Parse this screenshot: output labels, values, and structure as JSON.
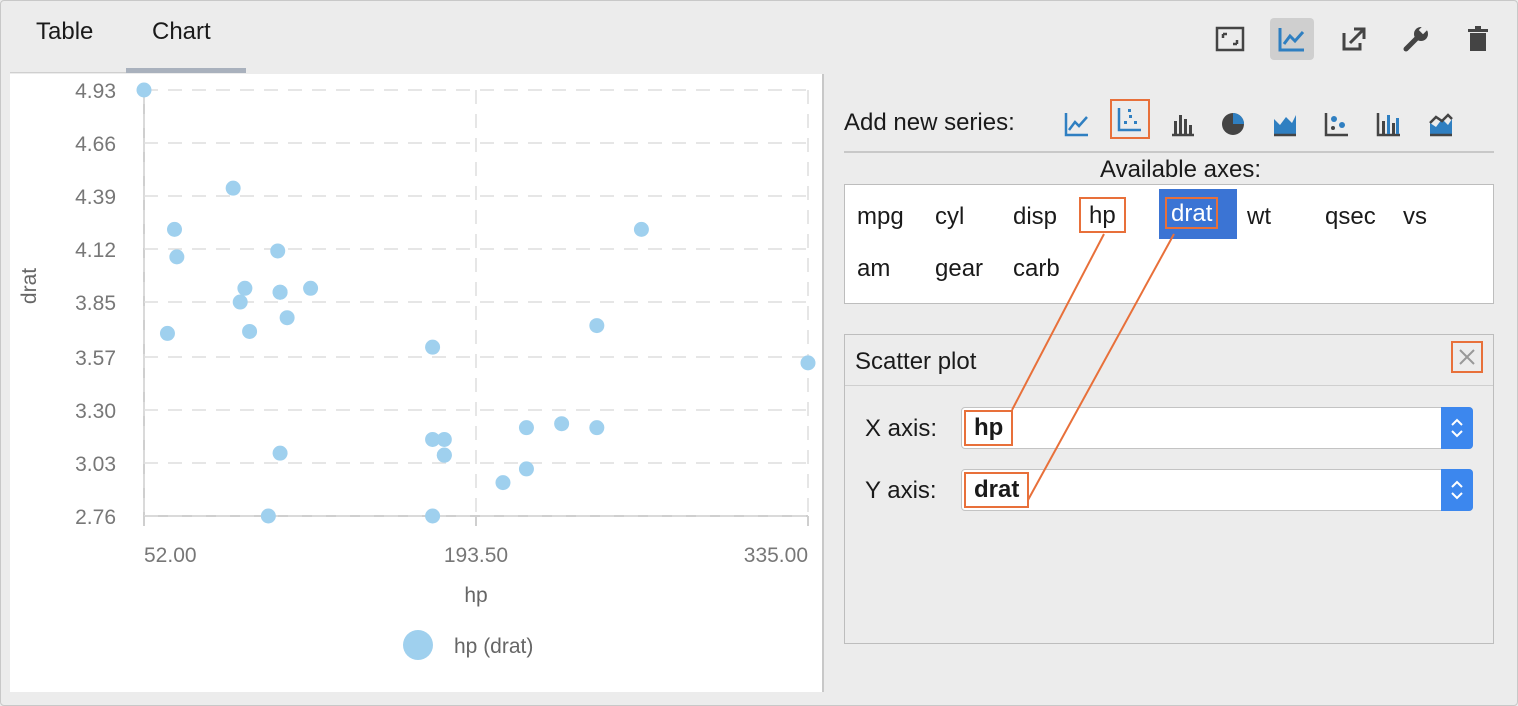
{
  "tabs": [
    {
      "label": "Table",
      "active": false
    },
    {
      "label": "Chart",
      "active": true
    }
  ],
  "toolbar": {
    "icons": [
      "fit-icon",
      "chart-icon",
      "export-icon",
      "wrench-icon",
      "trash-icon"
    ]
  },
  "add_series": {
    "label": "Add new series:",
    "icons": [
      "line-icon",
      "scatter-icon",
      "bar-icon",
      "pie-icon",
      "area-icon",
      "bubble-icon",
      "grouped-bar-icon",
      "stacked-area-icon"
    ],
    "selected": "scatter-icon"
  },
  "available_axes": {
    "title": "Available axes:",
    "items": [
      "mpg",
      "cyl",
      "disp",
      "hp",
      "drat",
      "wt",
      "qsec",
      "vs",
      "am",
      "gear",
      "carb"
    ],
    "selected": "drat"
  },
  "scatter_panel": {
    "title": "Scatter plot",
    "x_label": "X axis:",
    "x_value": "hp",
    "y_label": "Y axis:",
    "y_value": "drat"
  },
  "colors": {
    "point": "#9fd0ee",
    "highlight": "#e8703a",
    "accent": "#3c87ee",
    "selected": "#3b74d4"
  },
  "chart_data": {
    "type": "scatter",
    "xlabel": "hp",
    "ylabel": "drat",
    "xticks": [
      "52.00",
      "193.50",
      "335.00"
    ],
    "yticks": [
      "4.93",
      "4.66",
      "4.39",
      "4.12",
      "3.85",
      "3.57",
      "3.30",
      "3.03",
      "2.76"
    ],
    "xlim": [
      52,
      335
    ],
    "ylim": [
      2.76,
      4.93
    ],
    "grid": true,
    "legend": "bottom",
    "series": [
      {
        "name": "hp (drat)",
        "points": [
          [
            52,
            4.93
          ],
          [
            65,
            4.22
          ],
          [
            66,
            4.08
          ],
          [
            62,
            3.69
          ],
          [
            90,
            4.43
          ],
          [
            110,
            3.9
          ],
          [
            93,
            3.85
          ],
          [
            95,
            3.92
          ],
          [
            97,
            3.7
          ],
          [
            109,
            4.11
          ],
          [
            110,
            3.9
          ],
          [
            113,
            3.77
          ],
          [
            123,
            3.92
          ],
          [
            175,
            3.15
          ],
          [
            175,
            2.76
          ],
          [
            105,
            2.76
          ],
          [
            110,
            3.08
          ],
          [
            180,
            3.07
          ],
          [
            180,
            3.07
          ],
          [
            180,
            3.15
          ],
          [
            175,
            3.62
          ],
          [
            245,
            3.73
          ],
          [
            230,
            3.23
          ],
          [
            215,
            3.21
          ],
          [
            245,
            3.21
          ],
          [
            205,
            2.93
          ],
          [
            215,
            3.0
          ],
          [
            264,
            4.22
          ],
          [
            335,
            3.54
          ]
        ]
      }
    ]
  }
}
